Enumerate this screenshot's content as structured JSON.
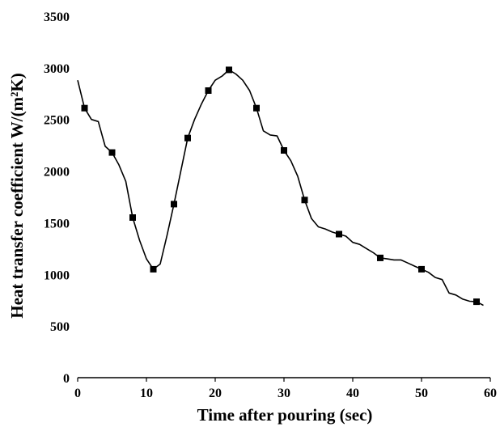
{
  "chart_data": {
    "type": "line",
    "xlabel": "Time after pouring (sec)",
    "ylabel": "Heat transfer coefficient  W/(m²K)",
    "xlim": [
      0,
      60
    ],
    "ylim": [
      0,
      3500
    ],
    "x_ticks": [
      0,
      10,
      20,
      30,
      40,
      50,
      60
    ],
    "y_ticks": [
      0,
      500,
      1000,
      1500,
      2000,
      2500,
      3000,
      3500
    ],
    "grid": false,
    "legend": "none",
    "series": [
      {
        "line_color": "#000000",
        "marker": "square",
        "x": [
          0,
          1,
          2,
          3,
          4,
          5,
          6,
          7,
          8,
          9,
          10,
          11,
          12,
          13,
          14,
          15,
          16,
          17,
          18,
          19,
          20,
          21,
          22,
          23,
          24,
          25,
          26,
          27,
          28,
          29,
          30,
          31,
          32,
          33,
          34,
          35,
          36,
          37,
          38,
          39,
          40,
          41,
          42,
          43,
          44,
          45,
          46,
          47,
          48,
          49,
          50,
          51,
          52,
          53,
          54,
          55,
          56,
          57,
          58,
          59
        ],
        "y": [
          2880,
          2610,
          2500,
          2480,
          2240,
          2180,
          2060,
          1900,
          1550,
          1330,
          1150,
          1050,
          1100,
          1380,
          1680,
          2000,
          2320,
          2500,
          2650,
          2780,
          2880,
          2920,
          2980,
          2940,
          2880,
          2780,
          2610,
          2390,
          2350,
          2340,
          2200,
          2100,
          1950,
          1720,
          1540,
          1460,
          1440,
          1410,
          1390,
          1370,
          1310,
          1290,
          1250,
          1210,
          1160,
          1150,
          1140,
          1140,
          1110,
          1080,
          1050,
          1020,
          970,
          950,
          820,
          800,
          760,
          740,
          735,
          700
        ],
        "marker_x": [
          1,
          5,
          8,
          11,
          14,
          16,
          19,
          22,
          26,
          30,
          33,
          38,
          44,
          50,
          58
        ],
        "marker_y": [
          2610,
          2180,
          1550,
          1050,
          1680,
          2320,
          2780,
          2980,
          2610,
          2200,
          1720,
          1390,
          1160,
          1050,
          735
        ]
      }
    ]
  }
}
